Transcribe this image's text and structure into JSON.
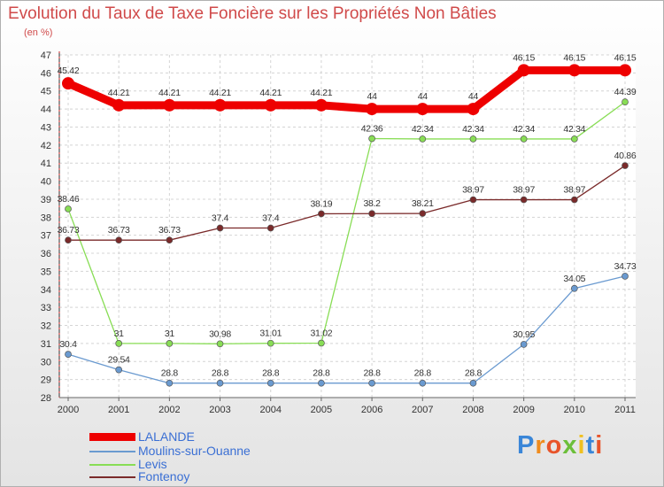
{
  "title": "Evolution du Taux de Taxe Foncière sur les Propriétés Non Bâties",
  "subtitle": "(en %)",
  "logo_text": "Proxiti",
  "chart_data": {
    "type": "line",
    "title": "Evolution du Taux de Taxe Foncière sur les Propriétés Non Bâties",
    "ylabel": "(en %)",
    "xlabel": "",
    "categories": [
      "2000",
      "2001",
      "2002",
      "2003",
      "2004",
      "2005",
      "2006",
      "2007",
      "2008",
      "2009",
      "2010",
      "2011"
    ],
    "ylim": [
      28,
      47
    ],
    "yticks": [
      28,
      29,
      30,
      31,
      32,
      33,
      34,
      35,
      36,
      37,
      38,
      39,
      40,
      41,
      42,
      43,
      44,
      45,
      46,
      47
    ],
    "grid": true,
    "legend_position": "bottom-left",
    "series": [
      {
        "name": "LALANDE",
        "color": "#ee0000",
        "values": [
          45.42,
          44.21,
          44.21,
          44.21,
          44.21,
          44.21,
          44,
          44,
          44,
          46.15,
          46.15,
          46.15
        ],
        "labels": [
          "45.42",
          "44.21",
          "44.21",
          "44.21",
          "44.21",
          "44.21",
          "44",
          "44",
          "44",
          "46.15",
          "46.15",
          "46.15"
        ]
      },
      {
        "name": "Moulins-sur-Ouanne",
        "color": "#6a9ad0",
        "values": [
          30.4,
          29.54,
          28.8,
          28.8,
          28.8,
          28.8,
          28.8,
          28.8,
          28.8,
          30.95,
          34.05,
          34.73
        ],
        "labels": [
          "30.4",
          "29.54",
          "28.8",
          "28.8",
          "28.8",
          "28.8",
          "28.8",
          "28.8",
          "28.8",
          "30.95",
          "34.05",
          "34.73"
        ]
      },
      {
        "name": "Levis",
        "color": "#88dd55",
        "values": [
          38.46,
          31,
          31,
          30.98,
          31.01,
          31.02,
          42.36,
          42.34,
          42.34,
          42.34,
          42.34,
          44.39
        ],
        "labels": [
          "38.46",
          "31",
          "31",
          "30.98",
          "31.01",
          "31.02",
          "42.36",
          "42.34",
          "42.34",
          "42.34",
          "42.34",
          "44.39"
        ]
      },
      {
        "name": "Fontenoy",
        "color": "#7a2a2a",
        "values": [
          36.73,
          36.73,
          36.73,
          37.4,
          37.4,
          38.19,
          38.2,
          38.21,
          38.97,
          38.97,
          38.97,
          40.86
        ],
        "labels": [
          "36.73",
          "36.73",
          "36.73",
          "37.4",
          "37.4",
          "38.19",
          "38.2",
          "38.21",
          "38.97",
          "38.97",
          "38.97",
          "40.86"
        ]
      }
    ]
  }
}
